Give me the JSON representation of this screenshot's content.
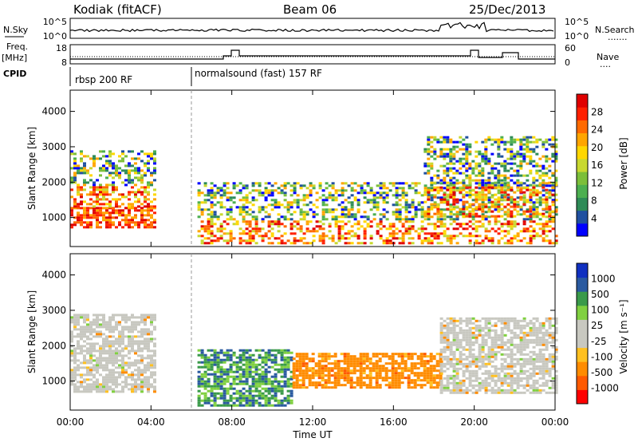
{
  "header": {
    "station": "Kodiak (fitACF)",
    "beam": "Beam 06",
    "date": "25/Dec/2013"
  },
  "top_panels": {
    "noise": {
      "left_label": "N.Sky",
      "right_label": "N.Search",
      "left_ticks": [
        "10^5",
        "10^0"
      ],
      "right_ticks": [
        "10^5",
        "10^0"
      ]
    },
    "freq": {
      "left_label_1": "Freq.",
      "left_label_2": "[MHz]",
      "right_label": "Nave",
      "left_ticks": [
        "18",
        "8"
      ],
      "right_ticks": [
        "60",
        "0"
      ]
    },
    "cpid": {
      "label": "CPID",
      "segments": [
        "rbsp 200 RF",
        "normalsound (fast) 157 RF"
      ]
    }
  },
  "chart_data": [
    {
      "type": "heatmap",
      "title": "",
      "xlabel": "",
      "ylabel": "Slant Range [km]",
      "xlim": [
        0,
        24
      ],
      "ylim": [
        180,
        4600
      ],
      "y_ticks": [
        "4000",
        "3000",
        "2000",
        "1000"
      ],
      "colorbar": {
        "label": "Power [dB]",
        "range": [
          0,
          32
        ],
        "ticks": [
          "28",
          "24",
          "20",
          "16",
          "12",
          "8",
          "4"
        ],
        "colors": [
          "#0000ff",
          "#2050a0",
          "#2e8b57",
          "#4caf50",
          "#7cbf3a",
          "#c8d830",
          "#ffd700",
          "#ffa500",
          "#ff6a00",
          "#ff2000",
          "#e00000"
        ]
      },
      "regions": [
        {
          "t0": 0.0,
          "t1": 4.2,
          "r0": 700,
          "r1": 1300,
          "level": "high"
        },
        {
          "t0": 0.0,
          "t1": 4.2,
          "r0": 1300,
          "r1": 2900,
          "level": "mixed"
        },
        {
          "t0": 6.3,
          "t1": 24.0,
          "r0": 300,
          "r1": 2000,
          "level": "mixed"
        },
        {
          "t0": 17.5,
          "t1": 24.0,
          "r0": 1000,
          "r1": 3300,
          "level": "mixed"
        }
      ]
    },
    {
      "type": "heatmap",
      "title": "",
      "xlabel": "Time UT",
      "ylabel": "Slant Range [km]",
      "xlim": [
        0,
        24
      ],
      "ylim": [
        180,
        4600
      ],
      "x_ticks": [
        "00:00",
        "04:00",
        "08:00",
        "12:00",
        "16:00",
        "20:00",
        "00:00"
      ],
      "y_ticks": [
        "4000",
        "3000",
        "2000",
        "1000"
      ],
      "colorbar": {
        "label": "Velocity [m s⁻¹]",
        "range": [
          -1000,
          1000
        ],
        "ticks": [
          "1000",
          "500",
          "100",
          "25",
          "-25",
          "-100",
          "-500",
          "-1000"
        ],
        "colors": [
          "#ff0000",
          "#ff5a00",
          "#ff8c00",
          "#ffc020",
          "#c8c8c0",
          "#c8c8c0",
          "#80d040",
          "#3a9a4a",
          "#2a5aa0",
          "#1030c0"
        ]
      },
      "regions": [
        {
          "t0": 0.0,
          "t1": 4.2,
          "r0": 700,
          "r1": 2900,
          "level": "ground"
        },
        {
          "t0": 6.3,
          "t1": 11.0,
          "r0": 300,
          "r1": 1900,
          "level": "positive"
        },
        {
          "t0": 11.0,
          "t1": 18.3,
          "r0": 800,
          "r1": 1800,
          "level": "negative"
        },
        {
          "t0": 18.3,
          "t1": 24.0,
          "r0": 700,
          "r1": 2800,
          "level": "ground"
        }
      ]
    }
  ]
}
